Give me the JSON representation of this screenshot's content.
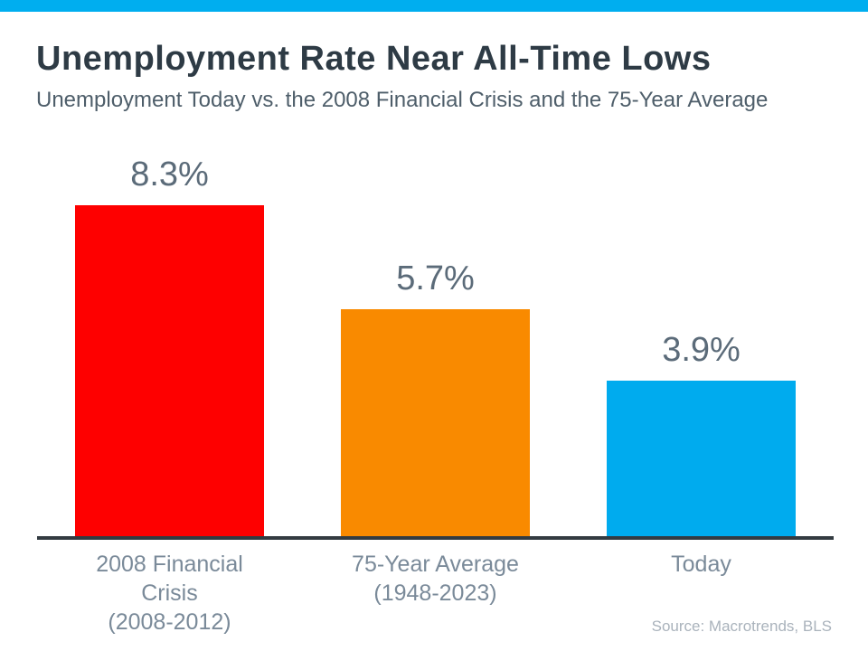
{
  "page": {
    "title": "Unemployment Rate Near All-Time Lows",
    "subtitle": "Unemployment Today vs. the 2008 Financial Crisis and the 75-Year Average",
    "source": "Source: Macrotrends, BLS",
    "accent_color": "#00AEEF"
  },
  "chart_data": {
    "type": "bar",
    "title": "Unemployment Rate Near All-Time Lows",
    "subtitle": "Unemployment Today vs. the 2008 Financial Crisis and the 75-Year Average",
    "categories": [
      [
        "2008 Financial Crisis",
        "(2008-2012)"
      ],
      [
        "75-Year Average",
        "(1948-2023)"
      ],
      [
        "Today"
      ]
    ],
    "values": [
      8.3,
      5.7,
      3.9
    ],
    "value_labels": [
      "8.3%",
      "5.7%",
      "3.9%"
    ],
    "bar_colors": [
      "#FE0000",
      "#F98A00",
      "#00ABEE"
    ],
    "ylabel": "",
    "xlabel": "",
    "ylim": [
      0,
      9
    ],
    "unit": "percent",
    "grid": false,
    "legend": "none",
    "source": "Source: Macrotrends, BLS"
  }
}
